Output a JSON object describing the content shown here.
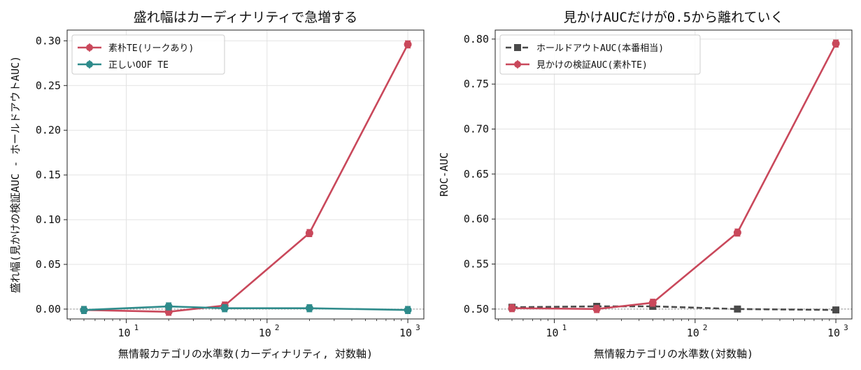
{
  "chart_data": [
    {
      "type": "line",
      "title": "盛れ幅はカーディナリティで急増する",
      "xlabel": "無情報カテゴリの水準数(カーディナリティ, 対数軸)",
      "ylabel": "盛れ幅(見かけの検証AUC - ホールドアウトAUC)",
      "xscale": "log",
      "xlim": [
        3.8,
        1300
      ],
      "ylim": [
        -0.011,
        0.312
      ],
      "yticks": [
        0.0,
        0.05,
        0.1,
        0.15,
        0.2,
        0.25,
        0.3
      ],
      "ytick_labels": [
        "0.00",
        "0.05",
        "0.10",
        "0.15",
        "0.20",
        "0.25",
        "0.30"
      ],
      "xticks": [
        10,
        100,
        1000
      ],
      "xtick_labels": [
        {
          "base": "10",
          "exp": "1"
        },
        {
          "base": "10",
          "exp": "2"
        },
        {
          "base": "10",
          "exp": "3"
        }
      ],
      "grid": true,
      "reference_line": {
        "y": 0.0,
        "style": "dotted"
      },
      "legend": {
        "position": "top-left"
      },
      "x": [
        5,
        20,
        50,
        200,
        1000
      ],
      "series": [
        {
          "name": "素朴TE(リークあり)",
          "color": "#C9485B",
          "marker": "circle",
          "linestyle": "solid",
          "errorbar": true,
          "values": [
            -0.001,
            -0.003,
            0.004,
            0.085,
            0.296
          ]
        },
        {
          "name": "正しいOOF TE",
          "color": "#2E8B8B",
          "marker": "circle",
          "linestyle": "solid",
          "errorbar": true,
          "values": [
            -0.001,
            0.003,
            0.001,
            0.001,
            -0.001
          ]
        }
      ]
    },
    {
      "type": "line",
      "title": "見かけAUCだけが0.5から離れていく",
      "xlabel": "無情報カテゴリの水準数(対数軸)",
      "ylabel": "ROC-AUC",
      "xscale": "log",
      "xlim": [
        3.8,
        1300
      ],
      "ylim": [
        0.489,
        0.81
      ],
      "yticks": [
        0.5,
        0.55,
        0.6,
        0.65,
        0.7,
        0.75,
        0.8
      ],
      "ytick_labels": [
        "0.50",
        "0.55",
        "0.60",
        "0.65",
        "0.70",
        "0.75",
        "0.80"
      ],
      "xticks": [
        10,
        100,
        1000
      ],
      "xtick_labels": [
        {
          "base": "10",
          "exp": "1"
        },
        {
          "base": "10",
          "exp": "2"
        },
        {
          "base": "10",
          "exp": "3"
        }
      ],
      "grid": true,
      "reference_line": {
        "y": 0.5,
        "style": "dotted"
      },
      "legend": {
        "position": "top-left"
      },
      "x": [
        5,
        20,
        50,
        200,
        1000
      ],
      "series": [
        {
          "name": "ホールドアウトAUC(本番相当)",
          "color": "#4A4A4A",
          "marker": "square",
          "linestyle": "dashed",
          "errorbar": false,
          "values": [
            0.502,
            0.503,
            0.503,
            0.5,
            0.499
          ]
        },
        {
          "name": "見かけの検証AUC(素朴TE)",
          "color": "#C9485B",
          "marker": "circle",
          "linestyle": "solid",
          "errorbar": true,
          "values": [
            0.501,
            0.5,
            0.507,
            0.585,
            0.795
          ]
        }
      ]
    }
  ]
}
